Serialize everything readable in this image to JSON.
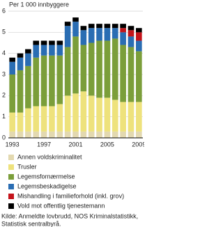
{
  "chart_data": {
    "type": "stacked_bar",
    "y_label": "Per 1 000 innbyggere",
    "categories": [
      "1993",
      null,
      null,
      null,
      "1997",
      null,
      null,
      null,
      "2001",
      null,
      null,
      null,
      "2005",
      null,
      null,
      null,
      "2009"
    ],
    "series": [
      {
        "name": "Annen voldskriminalitet",
        "color": "#e3d9b0",
        "values": [
          0.3,
          0.3,
          0.3,
          0.3,
          0.3,
          0.3,
          0.3,
          0.3,
          0.3,
          0.3,
          0.3,
          0.3,
          0.3,
          0.3,
          0.3,
          0.3,
          0.3
        ]
      },
      {
        "name": "Trusler",
        "color": "#eee27c",
        "values": [
          0.9,
          0.9,
          1.1,
          1.2,
          1.2,
          1.2,
          1.3,
          1.7,
          1.8,
          1.9,
          1.7,
          1.6,
          1.6,
          1.5,
          1.4,
          1.4,
          1.4
        ]
      },
      {
        "name": "Legemsfornærmelse",
        "color": "#7b9e3a",
        "values": [
          1.8,
          2.0,
          2.0,
          2.3,
          2.4,
          2.4,
          2.3,
          2.3,
          2.7,
          2.2,
          2.5,
          2.7,
          2.7,
          2.9,
          2.7,
          2.6,
          2.4
        ]
      },
      {
        "name": "Legemsbeskadigelse",
        "color": "#2a6db3",
        "values": [
          0.6,
          0.6,
          0.6,
          0.6,
          0.5,
          0.5,
          0.5,
          1.0,
          0.7,
          0.7,
          0.7,
          0.6,
          0.6,
          0.5,
          0.6,
          0.5,
          0.5
        ]
      },
      {
        "name": "Mishandling i familieforhold (inkl. grov)",
        "color": "#c4141b",
        "values": [
          null,
          null,
          null,
          null,
          null,
          null,
          null,
          null,
          null,
          null,
          null,
          null,
          null,
          null,
          0.2,
          0.3,
          0.4
        ]
      },
      {
        "name": "Vold mot offentlig tjenestemann",
        "color": "#000000",
        "values": [
          0.2,
          0.2,
          0.2,
          0.2,
          0.2,
          0.2,
          0.2,
          0.2,
          0.2,
          0.2,
          0.2,
          0.2,
          0.2,
          0.2,
          0.2,
          0.2,
          0.2
        ]
      }
    ],
    "ylim": [
      0,
      6
    ],
    "yticks": [
      0,
      1,
      2,
      3,
      4,
      5,
      6
    ],
    "grid": true,
    "source": [
      "Kilde: Anmeldte lovbrudd, NOS Kriminalstatistikk,",
      "Statistisk sentralbyrå."
    ]
  }
}
